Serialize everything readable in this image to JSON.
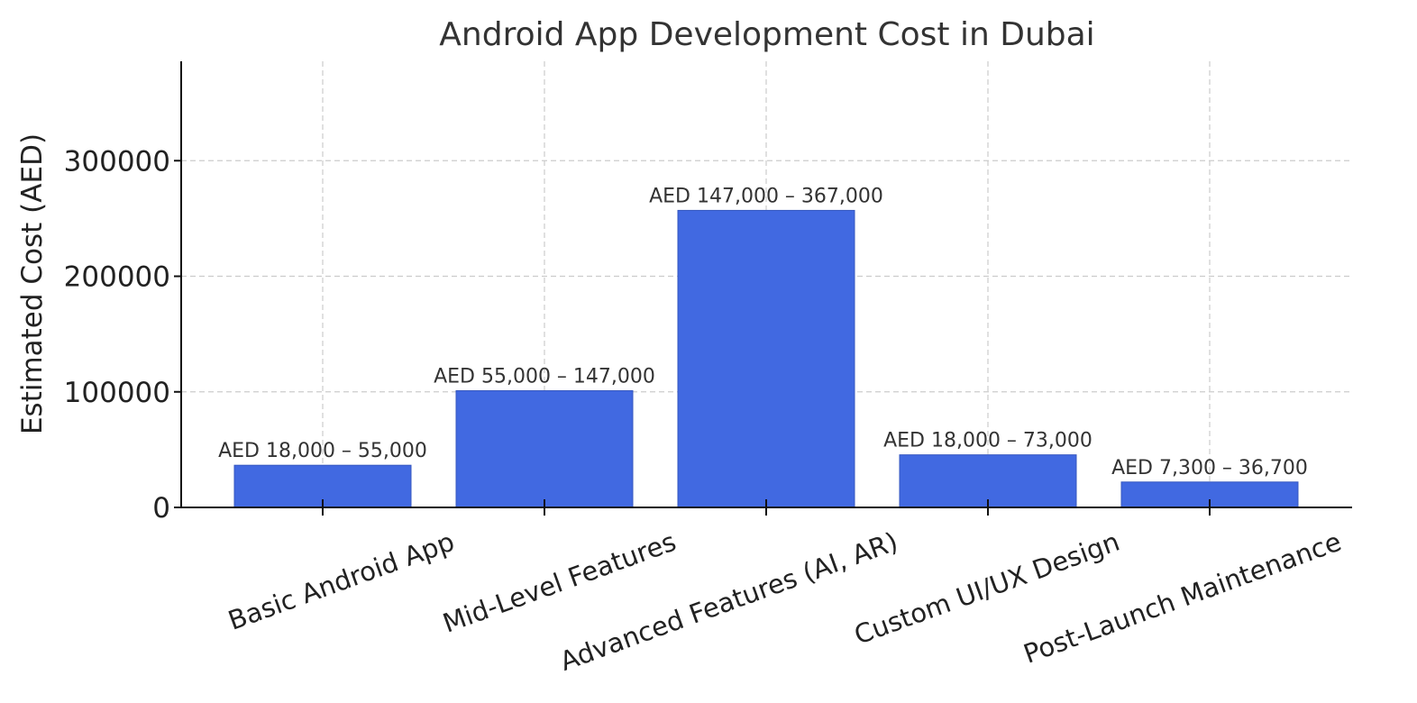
{
  "chart_data": {
    "type": "bar",
    "title": "Android App Development Cost in Dubai",
    "xlabel": "",
    "ylabel": "Estimated Cost (AED)",
    "categories": [
      "Basic Android App",
      "Mid-Level Features",
      "Advanced Features (AI, AR)",
      "Custom UI/UX Design",
      "Post-Launch Maintenance"
    ],
    "values": [
      36500,
      101000,
      257000,
      45500,
      22000
    ],
    "data_labels": [
      "AED 18,000 – 55,000",
      "AED 55,000 – 147,000",
      "AED 147,000 – 367,000",
      "AED 18,000 – 73,000",
      "AED 7,300 – 36,700"
    ],
    "yticks": [
      0,
      100000,
      200000,
      300000
    ],
    "ytick_labels": [
      "0",
      "100000",
      "200000",
      "300000"
    ],
    "ylim": [
      0,
      386000
    ],
    "grid": true,
    "bar_color": "#4169e1",
    "legend": "none"
  }
}
